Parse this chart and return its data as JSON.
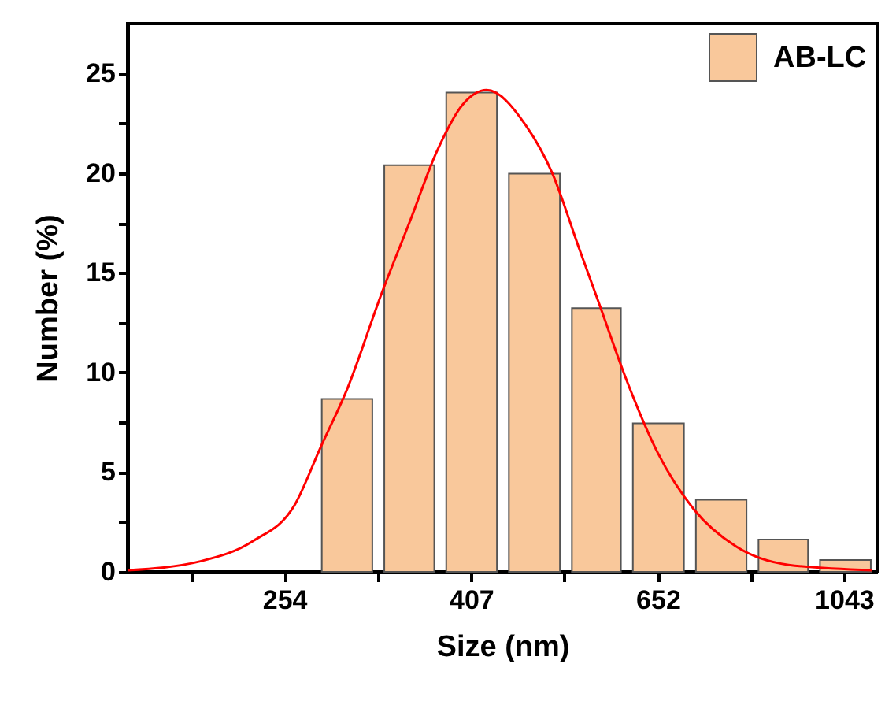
{
  "chart_data": {
    "type": "histogram",
    "xlabel": "Size (nm)",
    "ylabel": "Number (%)",
    "log": "x",
    "legend": "top right",
    "grid": false,
    "bins": [
      275,
      322,
      376.5,
      441,
      517,
      603,
      707,
      828,
      967,
      1133
    ],
    "series": [
      {
        "name": "AB-LC",
        "color": "#f9c89b",
        "values": [
          8.67,
          20.4,
          24.04,
          19.97,
          13.23,
          7.45,
          3.62,
          1.62,
          0.59
        ]
      },
      {
        "type": "line",
        "color": "#ff0000",
        "x": [
          171,
          205.5,
          234.6,
          260.9,
          278.6,
          297.8,
          324.6,
          349.2,
          373.2,
          398.6,
          423.1,
          467.2,
          499.3,
          533.6,
          562.5,
          601.3,
          651,
          714.4,
          794.3,
          906.9,
          1120.6
        ],
        "values": [
          0.08,
          0.53,
          1.54,
          3.38,
          6.29,
          9.19,
          13.95,
          17.65,
          21.08,
          23.45,
          24.17,
          22.4,
          20.02,
          16.32,
          13.42,
          9.72,
          6.02,
          3.12,
          1.27,
          0.35,
          0.08
        ]
      }
    ],
    "xlim": [
      171,
      1134
    ],
    "xticks": [
      {
        "value": 201,
        "label": null
      },
      254,
      {
        "value": 322,
        "label": null
      },
      407,
      {
        "value": 515,
        "label": null
      },
      652,
      {
        "value": 825,
        "label": null
      },
      1043
    ],
    "ylim": [
      0,
      27.5
    ],
    "yticks": [
      0,
      {
        "value": 2.5,
        "label": null
      },
      5,
      {
        "value": 7.5,
        "label": null
      },
      10,
      {
        "value": 12.5,
        "label": null
      },
      15,
      {
        "value": 17.5,
        "label": null
      },
      20,
      {
        "value": 22.5,
        "label": null
      },
      25
    ]
  }
}
